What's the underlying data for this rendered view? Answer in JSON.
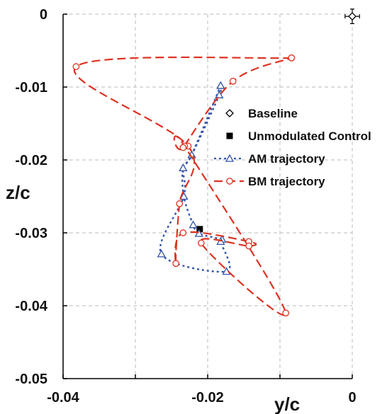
{
  "chart_data": {
    "type": "line",
    "xlabel": "y/c",
    "ylabel": "z/c",
    "xlim": [
      -0.04,
      0.0
    ],
    "ylim": [
      -0.05,
      0.0
    ],
    "x_ticks": [
      "-0.04",
      "-0.02",
      "0"
    ],
    "y_ticks": [
      "0",
      "-0.01",
      "-0.02",
      "-0.03",
      "-0.04",
      "-0.05"
    ],
    "grid": true,
    "legend_position": "right",
    "series": [
      {
        "name": "Baseline",
        "marker": "diamond-open",
        "color": "#000000",
        "points": [
          [
            0.0,
            -0.0003
          ]
        ],
        "error": {
          "x": 0.001,
          "y": 0.001
        }
      },
      {
        "name": "Unmodulated Control",
        "marker": "square-filled",
        "color": "#000000",
        "points": [
          [
            -0.0211,
            -0.0295
          ]
        ]
      },
      {
        "name": "AM trajectory",
        "marker": "triangle-open",
        "line": "dotted",
        "color": "#3355aa",
        "points": [
          [
            -0.0182,
            -0.0098
          ],
          [
            -0.0184,
            -0.0111
          ],
          [
            -0.0222,
            -0.0193
          ],
          [
            -0.0234,
            -0.0211
          ],
          [
            -0.0233,
            -0.025
          ],
          [
            -0.022,
            -0.0289
          ],
          [
            -0.0212,
            -0.0301
          ],
          [
            -0.018,
            -0.0309
          ],
          [
            -0.0182,
            -0.0312
          ],
          [
            -0.0174,
            -0.0353
          ],
          [
            -0.0264,
            -0.0329
          ],
          [
            -0.0233,
            -0.025
          ],
          [
            -0.0234,
            -0.0211
          ],
          [
            -0.0222,
            -0.0193
          ],
          [
            -0.0182,
            -0.0098
          ]
        ]
      },
      {
        "name": "BM trajectory",
        "marker": "circle-open",
        "line": "dashed",
        "color": "#dd3322",
        "points": [
          [
            -0.0084,
            -0.006
          ],
          [
            -0.0382,
            -0.0072
          ],
          [
            -0.0227,
            -0.0181
          ],
          [
            -0.0239,
            -0.026
          ],
          [
            -0.0244,
            -0.0342
          ],
          [
            -0.0234,
            -0.03
          ],
          [
            -0.0143,
            -0.0312
          ],
          [
            -0.0143,
            -0.0318
          ],
          [
            -0.0209,
            -0.0314
          ],
          [
            -0.0092,
            -0.041
          ],
          [
            -0.0232,
            -0.0181
          ],
          [
            -0.0234,
            -0.0183
          ],
          [
            -0.0165,
            -0.0092
          ],
          [
            -0.0084,
            -0.006
          ]
        ]
      }
    ]
  }
}
